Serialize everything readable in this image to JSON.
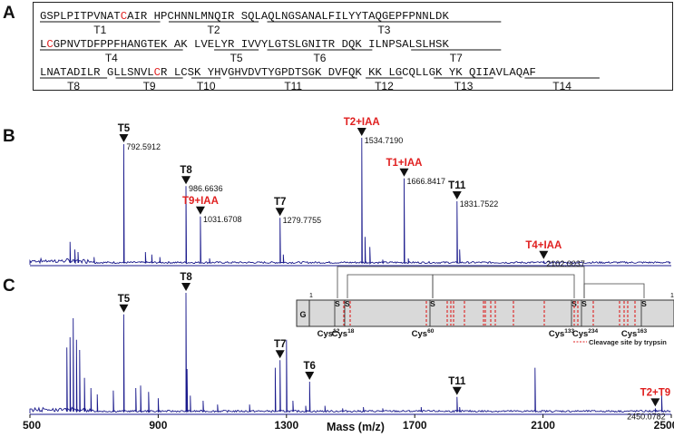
{
  "panel_labels": {
    "a": "A",
    "b": "B",
    "c": "C"
  },
  "sequence": {
    "line1": "GSPLPITPVNATCAIR HPCHNNLMNQIR SQLAQLNGSANALFILYYTAQGEPFPNNLDK",
    "line2": "LCGPNVTDFPPFHANGTEK AK LVELYR IVVYLGTSLGNITR DQK ILNPSALSLHSK",
    "line3": "LNATADILR GLLSNVLCR LCSK YHVGHVDVTYGPDTSGK DVFQK KK LGCQLLGK YK QIIAVLAQAF",
    "fragment_labels": [
      "T1",
      "T2",
      "T3",
      "T4",
      "T5",
      "T6",
      "T7",
      "T8",
      "T9",
      "T10",
      "T11",
      "T12",
      "T13",
      "T14"
    ]
  },
  "schematic": {
    "start": "1",
    "end": "1",
    "g_label": "G",
    "s_label": "S",
    "cys_labels": [
      {
        "text": "Cys",
        "sup": "12"
      },
      {
        "text": "Cys",
        "sup": "18"
      },
      {
        "text": "Cys",
        "sup": "60"
      },
      {
        "text": "Cys",
        "sup": "133"
      },
      {
        "text": "Cys",
        "sup": "234"
      },
      {
        "text": "Cys",
        "sup": "163"
      }
    ],
    "legend": "Cleavage site by trypsin"
  },
  "colors": {
    "spectrum": "#1a1a8c",
    "highlight": "#e02020",
    "marker": "#111111",
    "box": "#d9d9d9"
  },
  "chart_data": [
    {
      "type": "line",
      "panel": "B",
      "xlim": [
        500,
        2500
      ],
      "peaks": [
        {
          "label": "T5",
          "mz": 792.5912,
          "mz_text": "792.5912",
          "height": 0.95,
          "red": false
        },
        {
          "label": "T8",
          "mz": 986.6636,
          "mz_text": "986.6636",
          "height": 0.62,
          "red": false
        },
        {
          "label": "T9+IAA",
          "mz": 1031.6708,
          "mz_text": "1031.6708",
          "height": 0.38,
          "red": true
        },
        {
          "label": "T7",
          "mz": 1279.7755,
          "mz_text": "1279.7755",
          "height": 0.37,
          "red": false
        },
        {
          "label": "T2+IAA",
          "mz": 1534.719,
          "mz_text": "1534.7190",
          "height": 1.0,
          "red": true
        },
        {
          "label": "T1+IAA",
          "mz": 1666.8417,
          "mz_text": "1666.8417",
          "height": 0.68,
          "red": true
        },
        {
          "label": "T11",
          "mz": 1831.7522,
          "mz_text": "1831.7522",
          "height": 0.5,
          "red": false
        },
        {
          "label": "T4+IAA",
          "mz": 2102.0037,
          "mz_text": "2102.0037",
          "height": 0.03,
          "red": true
        }
      ]
    },
    {
      "type": "line",
      "panel": "C",
      "xlim": [
        500,
        2500
      ],
      "xticks": [
        500,
        900,
        1300,
        1700,
        2100,
        2500
      ],
      "xlabel": "Mass (m/z)",
      "peaks": [
        {
          "label": "T5",
          "mz": 792.6,
          "mz_text": "",
          "height": 0.78,
          "red": false
        },
        {
          "label": "T8",
          "mz": 986.7,
          "mz_text": "",
          "height": 0.95,
          "red": false
        },
        {
          "label": "T7",
          "mz": 1279.8,
          "mz_text": "",
          "height": 0.42,
          "red": false
        },
        {
          "label": "T6",
          "mz": 1372.0,
          "mz_text": "",
          "height": 0.25,
          "red": false
        },
        {
          "label": "T11",
          "mz": 1831.8,
          "mz_text": "",
          "height": 0.13,
          "red": false
        },
        {
          "label": "T2+T9",
          "mz": 2450.0782,
          "mz_text": "2450.0782",
          "height": 0.04,
          "red": true
        }
      ]
    }
  ]
}
